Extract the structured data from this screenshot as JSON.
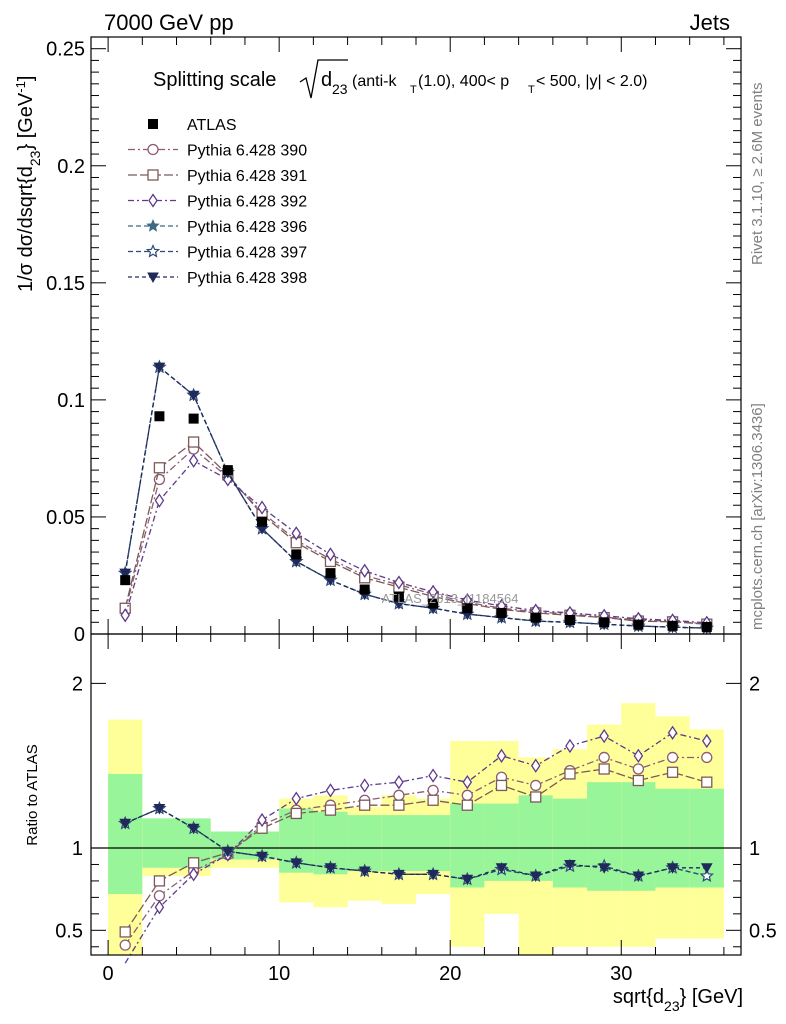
{
  "header": {
    "left": "7000 GeV pp",
    "right": "Jets"
  },
  "side_labels": {
    "rivet": "Rivet 3.1.10, ≥ 2.6M events",
    "mcplots": "mcplots.cern.ch [arXiv:1306.3436]"
  },
  "chart_data": {
    "type": "scatter",
    "title": "Splitting scale √d23 (anti-kT(1.0), 400< pT < 500, |y| < 2.0)",
    "title_parts": {
      "lead": "Splitting scale",
      "var": "d",
      "var_sub": "23",
      "p1": " (anti-k",
      "p1_sub": "T",
      "p2": "(1.0), 400< p",
      "p2_sub": "T",
      "p3": " < 500, |y| < 2.0)"
    },
    "watermark": "ATLAS_2013_I1184564",
    "xlabel": "sqrt{d23} [GeV]",
    "xlabel_parts": {
      "a": "sqrt{d",
      "sub": "23",
      "b": "} [GeV]"
    },
    "ylabel": "1/σ dσ/dsqrt{d23} [GeV^-1]",
    "ylabel_parts": {
      "a": "1/σ dσ/dsqrt{d",
      "sub": "23",
      "b": "} [GeV",
      "sup": "-1",
      "c": "]"
    },
    "ratio_ylabel": "Ratio to ATLAS",
    "xlim": [
      -1,
      37
    ],
    "ylim": [
      0,
      0.255
    ],
    "ratio_ylim": [
      0.35,
      2.3
    ],
    "x_ticks": [
      0,
      10,
      20,
      30
    ],
    "x_tick_labels": [
      "0",
      "10",
      "20",
      "30"
    ],
    "y_ticks": [
      0,
      0.05,
      0.1,
      0.15,
      0.2,
      0.25
    ],
    "y_tick_labels": [
      "0",
      "0.05",
      "0.1",
      "0.15",
      "0.2",
      "0.25"
    ],
    "ratio_ticks": [
      0.5,
      1,
      2
    ],
    "ratio_tick_labels": [
      "0.5",
      "1",
      "2"
    ],
    "x": [
      1,
      3,
      5,
      7,
      9,
      11,
      13,
      15,
      17,
      19,
      21,
      23,
      25,
      27,
      29,
      31,
      33,
      35
    ],
    "bin_edges": [
      0,
      2,
      4,
      6,
      8,
      10,
      12,
      14,
      16,
      18,
      20,
      22,
      24,
      26,
      28,
      30,
      32,
      34,
      36
    ],
    "data": {
      "name": "ATLAS",
      "values": [
        0.023,
        0.093,
        0.092,
        0.07,
        0.048,
        0.034,
        0.026,
        0.019,
        0.016,
        0.013,
        0.011,
        0.009,
        0.007,
        0.006,
        0.005,
        0.004,
        0.0035,
        0.003
      ]
    },
    "bands": {
      "green_lo": [
        0.72,
        0.88,
        0.88,
        0.93,
        0.93,
        0.85,
        0.84,
        0.86,
        0.86,
        0.86,
        0.76,
        0.8,
        0.8,
        0.76,
        0.74,
        0.74,
        0.76,
        0.76
      ],
      "green_hi": [
        1.45,
        1.18,
        1.18,
        1.1,
        1.1,
        1.24,
        1.22,
        1.2,
        1.2,
        1.2,
        1.27,
        1.27,
        1.32,
        1.3,
        1.4,
        1.4,
        1.36,
        1.36
      ],
      "yellow_lo": [
        0.35,
        0.83,
        0.83,
        0.88,
        0.88,
        0.67,
        0.64,
        0.68,
        0.66,
        0.72,
        0.4,
        0.6,
        0.35,
        0.4,
        0.4,
        0.4,
        0.45,
        0.45
      ],
      "yellow_hi": [
        1.78,
        1.15,
        1.15,
        1.1,
        1.1,
        1.3,
        1.32,
        1.25,
        1.32,
        1.3,
        1.65,
        1.65,
        1.55,
        1.6,
        1.75,
        1.88,
        1.8,
        1.72
      ]
    },
    "series": [
      {
        "name": "Pythia 6.428 390",
        "color": "#8c5c72",
        "marker": "circle-open",
        "dash": "7,3,2,3",
        "values": [
          0.01,
          0.066,
          0.079,
          0.067,
          0.052,
          0.04,
          0.032,
          0.025,
          0.021,
          0.017,
          0.0135,
          0.011,
          0.0095,
          0.0085,
          0.0072,
          0.006,
          0.0054,
          0.0044
        ],
        "ratio": [
          0.41,
          0.71,
          0.86,
          0.96,
          1.14,
          1.23,
          1.26,
          1.29,
          1.32,
          1.35,
          1.32,
          1.43,
          1.38,
          1.47,
          1.55,
          1.48,
          1.55,
          1.55
        ]
      },
      {
        "name": "Pythia 6.428 391",
        "color": "#7c5a5a",
        "marker": "square-open",
        "dash": "9,3",
        "values": [
          0.011,
          0.071,
          0.082,
          0.068,
          0.051,
          0.039,
          0.031,
          0.024,
          0.02,
          0.016,
          0.013,
          0.0105,
          0.009,
          0.008,
          0.007,
          0.0055,
          0.0052,
          0.0042
        ],
        "ratio": [
          0.49,
          0.8,
          0.91,
          0.97,
          1.12,
          1.21,
          1.23,
          1.26,
          1.26,
          1.29,
          1.26,
          1.38,
          1.31,
          1.45,
          1.48,
          1.41,
          1.46,
          1.4
        ]
      },
      {
        "name": "Pythia 6.428 392",
        "color": "#5e3a8c",
        "marker": "diamond-open",
        "dash": "6,3,2,3",
        "values": [
          0.008,
          0.057,
          0.074,
          0.066,
          0.054,
          0.043,
          0.034,
          0.027,
          0.022,
          0.018,
          0.0145,
          0.012,
          0.01,
          0.009,
          0.0078,
          0.0065,
          0.0058,
          0.0048
        ],
        "ratio": [
          0.3,
          0.64,
          0.84,
          0.96,
          1.17,
          1.3,
          1.35,
          1.38,
          1.4,
          1.44,
          1.4,
          1.56,
          1.5,
          1.62,
          1.68,
          1.56,
          1.7,
          1.65
        ]
      },
      {
        "name": "Pythia 6.428 396",
        "color": "#3d6b80",
        "marker": "star-filled",
        "dash": "5,3",
        "values": [
          0.026,
          0.114,
          0.102,
          0.069,
          0.045,
          0.031,
          0.023,
          0.017,
          0.013,
          0.011,
          0.0085,
          0.007,
          0.0055,
          0.005,
          0.0042,
          0.0034,
          0.0029,
          0.0025
        ],
        "ratio": [
          1.15,
          1.24,
          1.12,
          0.98,
          0.95,
          0.91,
          0.88,
          0.86,
          0.84,
          0.84,
          0.81,
          0.87,
          0.83,
          0.89,
          0.89,
          0.83,
          0.88,
          0.83
        ]
      },
      {
        "name": "Pythia 6.428 397",
        "color": "#2e4a78",
        "marker": "star-open",
        "dash": "5,3",
        "values": [
          0.026,
          0.114,
          0.102,
          0.069,
          0.045,
          0.031,
          0.023,
          0.017,
          0.013,
          0.011,
          0.0085,
          0.007,
          0.0055,
          0.005,
          0.0042,
          0.0034,
          0.0029,
          0.0025
        ],
        "ratio": [
          1.15,
          1.24,
          1.12,
          0.98,
          0.95,
          0.91,
          0.88,
          0.86,
          0.84,
          0.84,
          0.81,
          0.87,
          0.83,
          0.89,
          0.89,
          0.83,
          0.88,
          0.83
        ]
      },
      {
        "name": "Pythia 6.428 398",
        "color": "#1f2a5a",
        "marker": "triangle-down",
        "dash": "4,3",
        "values": [
          0.026,
          0.114,
          0.102,
          0.069,
          0.045,
          0.031,
          0.023,
          0.017,
          0.013,
          0.011,
          0.0085,
          0.007,
          0.0055,
          0.005,
          0.0042,
          0.0034,
          0.0029,
          0.0025
        ],
        "ratio": [
          1.15,
          1.24,
          1.12,
          0.98,
          0.95,
          0.91,
          0.88,
          0.86,
          0.84,
          0.84,
          0.81,
          0.88,
          0.83,
          0.9,
          0.88,
          0.83,
          0.88,
          0.88
        ]
      }
    ],
    "legend": "top-left"
  }
}
